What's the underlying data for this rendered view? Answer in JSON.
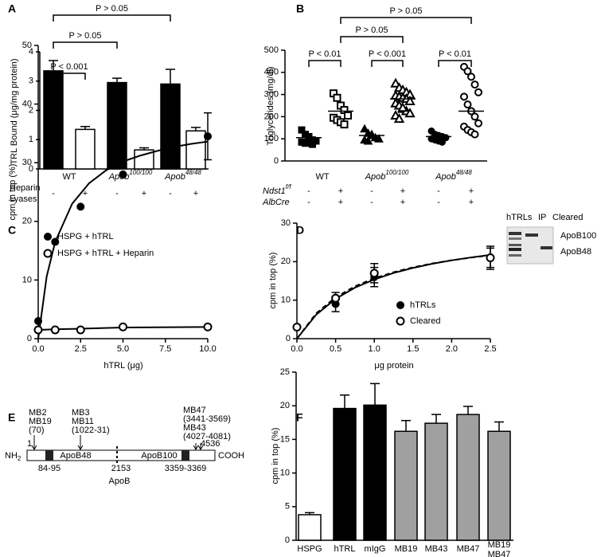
{
  "chart_data": [
    {
      "type": "bar",
      "panel_label": "A",
      "ylabel": "TRL Bound (μg/mg protein)",
      "groups": [
        {
          "text": "WT"
        },
        {
          "text": "Apob",
          "sup": "100/100"
        },
        {
          "text": "Apob",
          "sup": "48/48"
        }
      ],
      "row_labels": [
        "Heparin",
        "Lyases"
      ],
      "categories": [
        "-",
        "+",
        "-",
        "+",
        "-",
        "+"
      ],
      "values": [
        3.35,
        1.35,
        2.95,
        0.65,
        2.9,
        1.3
      ],
      "errors": [
        0.35,
        0.1,
        0.15,
        0.07,
        0.5,
        0.12
      ],
      "colors": [
        "#000000",
        "#ffffff",
        "#000000",
        "#ffffff",
        "#000000",
        "#ffffff"
      ],
      "ylim": [
        0,
        4
      ],
      "yticks": [
        0,
        1,
        2,
        3,
        4
      ],
      "comparisons": [
        "P < 0.001",
        "P > 0.05",
        "P > 0.05"
      ]
    },
    {
      "type": "dot",
      "panel_label": "B",
      "ylabel": "Triglycerides (mg/dl)",
      "groups": [
        {
          "text": "WT"
        },
        {
          "text": "Apob",
          "sup": "100/100"
        },
        {
          "text": "Apob",
          "sup": "48/48"
        }
      ],
      "row_labels": [
        {
          "text": "Ndst1",
          "sup": "f/f"
        },
        {
          "text": "AlbCre"
        }
      ],
      "rows": [
        [
          "-",
          "+",
          "-",
          "+",
          "-",
          "+"
        ],
        [
          "-",
          "+",
          "-",
          "+",
          "-",
          "+"
        ]
      ],
      "series": [
        {
          "marker": "square",
          "filled": true,
          "values": [
            140,
            120,
            100,
            95,
            90,
            85,
            80,
            110,
            75
          ]
        },
        {
          "marker": "square",
          "filled": false,
          "values": [
            305,
            285,
            250,
            230,
            205,
            195,
            185,
            175,
            165
          ]
        },
        {
          "marker": "triangle",
          "filled": true,
          "values": [
            145,
            125,
            115,
            105,
            100,
            95,
            90,
            120
          ]
        },
        {
          "marker": "triangle",
          "filled": false,
          "values": [
            350,
            330,
            320,
            310,
            300,
            295,
            290,
            285,
            280,
            270,
            260,
            250,
            235,
            225,
            215,
            205,
            190,
            240
          ]
        },
        {
          "marker": "circle",
          "filled": true,
          "values": [
            135,
            120,
            115,
            110,
            105,
            100,
            95,
            90,
            85
          ]
        },
        {
          "marker": "circle",
          "filled": false,
          "values": [
            425,
            405,
            380,
            345,
            310,
            290,
            255,
            225,
            200,
            170,
            155,
            140,
            130,
            120
          ]
        }
      ],
      "means": [
        105,
        225,
        115,
        280,
        110,
        225
      ],
      "ylim": [
        0,
        500
      ],
      "yticks": [
        0,
        100,
        200,
        300,
        400,
        500
      ],
      "comparisons": [
        "P > 0.05",
        "P > 0.05",
        "P < 0.01",
        "P < 0.001",
        "P < 0.01"
      ]
    },
    {
      "type": "scatter",
      "panel_label": "C",
      "ylabel": "cpm in top (%)",
      "xlabel": "hTRL (μg)",
      "series": [
        {
          "name": "HSPG + hTRL",
          "filled": true,
          "x": [
            0,
            1,
            2.5,
            5,
            10
          ],
          "values": [
            3,
            16.5,
            22.5,
            28,
            34.5
          ],
          "errors": [
            null,
            null,
            null,
            null,
            4
          ]
        },
        {
          "name": "HSPG + hTRL + Heparin",
          "filled": false,
          "x": [
            0,
            1,
            2.5,
            5,
            10
          ],
          "values": [
            1.5,
            1.5,
            1.5,
            2,
            2
          ]
        }
      ],
      "fits": [
        {
          "dash": false,
          "x": [
            0,
            0.5,
            1,
            2,
            3,
            4,
            5,
            6,
            7,
            8,
            9,
            10
          ],
          "values": [
            0,
            10.6,
            16.5,
            23,
            26.5,
            28.7,
            30.2,
            31.2,
            32,
            32.7,
            33.2,
            33.6
          ]
        },
        {
          "dash": false,
          "x": [
            0,
            1,
            2.5,
            5,
            10
          ],
          "values": [
            1.5,
            1.6,
            1.7,
            1.9,
            2
          ]
        }
      ],
      "xlim": [
        0,
        10
      ],
      "xticks": [
        {
          "value": 0,
          "label": "0.0"
        },
        2.5,
        {
          "value": 5,
          "label": "5.0"
        },
        7.5,
        {
          "value": 10,
          "label": "10.0"
        }
      ],
      "ylim": [
        0,
        50
      ],
      "yticks": [
        0,
        10,
        20,
        30,
        40,
        50
      ]
    },
    {
      "type": "scatter",
      "panel_label": "D",
      "ylabel": "cpm in top (%)",
      "xlabel": "μg protein",
      "series": [
        {
          "name": "hTRLs",
          "filled": true,
          "x": [
            0,
            0.5,
            1,
            2.5
          ],
          "values": [
            3,
            9,
            16,
            21
          ],
          "errors": [
            null,
            2,
            2.5,
            2.5
          ]
        },
        {
          "name": "Cleared",
          "filled": false,
          "x": [
            0,
            0.5,
            1,
            2.5
          ],
          "values": [
            3,
            10.5,
            17,
            21
          ],
          "errors": [
            null,
            1.5,
            2.5,
            3
          ]
        }
      ],
      "fits": [
        {
          "dash": false,
          "x": [
            0,
            0.25,
            0.5,
            0.75,
            1,
            1.25,
            1.5,
            1.75,
            2,
            2.25,
            2.5
          ],
          "values": [
            0,
            6.25,
            10.34,
            13.24,
            15.38,
            17.05,
            18.37,
            19.44,
            20.34,
            21.09,
            21.74
          ]
        },
        {
          "dash": true,
          "x": [
            0,
            0.25,
            0.5,
            0.75,
            1,
            1.25,
            1.5,
            1.75,
            2,
            2.25,
            2.5
          ],
          "values": [
            0,
            6.59,
            10.74,
            13.59,
            15.68,
            17.26,
            18.51,
            19.52,
            20.35,
            21.05,
            21.64
          ]
        }
      ],
      "xlim": [
        0,
        2.5
      ],
      "xticks": [
        {
          "value": 0,
          "label": "0.0"
        },
        0.5,
        {
          "value": 1,
          "label": "1.0"
        },
        1.5,
        {
          "value": 2,
          "label": "2.0"
        },
        2.5
      ],
      "ylim": [
        0,
        30
      ],
      "yticks": [
        0,
        10,
        20,
        30
      ],
      "inset": {
        "lanes": [
          "hTRLs",
          "IP",
          "Cleared"
        ],
        "bands": [
          "ApoB100",
          "ApoB48"
        ]
      }
    },
    {
      "type": "bar",
      "panel_label": "F",
      "ylabel": "cpm in top (%)",
      "categories": [
        "HSPG",
        "hTRL",
        "mIgG",
        "MB19",
        "MB43",
        "MB47",
        [
          "MB19",
          "MB47"
        ]
      ],
      "values": [
        3.8,
        19.6,
        20.1,
        16.2,
        17.4,
        18.7,
        16.2
      ],
      "errors": [
        0.3,
        2,
        3.2,
        1.6,
        1.3,
        1.2,
        1.4
      ],
      "colors": [
        "#ffffff",
        "#000000",
        "#000000",
        "#a0a0a0",
        "#a0a0a0",
        "#a0a0a0",
        "#a0a0a0"
      ],
      "ylim": [
        0,
        25
      ],
      "yticks": [
        0,
        5,
        10,
        15,
        20,
        25
      ]
    }
  ],
  "diagram": {
    "panel_label": "E",
    "title": "ApoB",
    "epitopes": [
      [
        "MB2",
        "MB19",
        "(70)"
      ],
      [
        "MB3",
        "MB11",
        "(1022-31)"
      ],
      [
        "MB47",
        "(3441-3569)",
        "MB43",
        "(4027-4081)"
      ]
    ],
    "start": "1",
    "end": "4536",
    "n_term": {
      "text": "NH",
      "sub": "2"
    },
    "c_term": "COOH",
    "segments": [
      "ApoB48",
      "ApoB100"
    ],
    "positions": [
      "84-95",
      "2153",
      "3359-3369"
    ]
  }
}
